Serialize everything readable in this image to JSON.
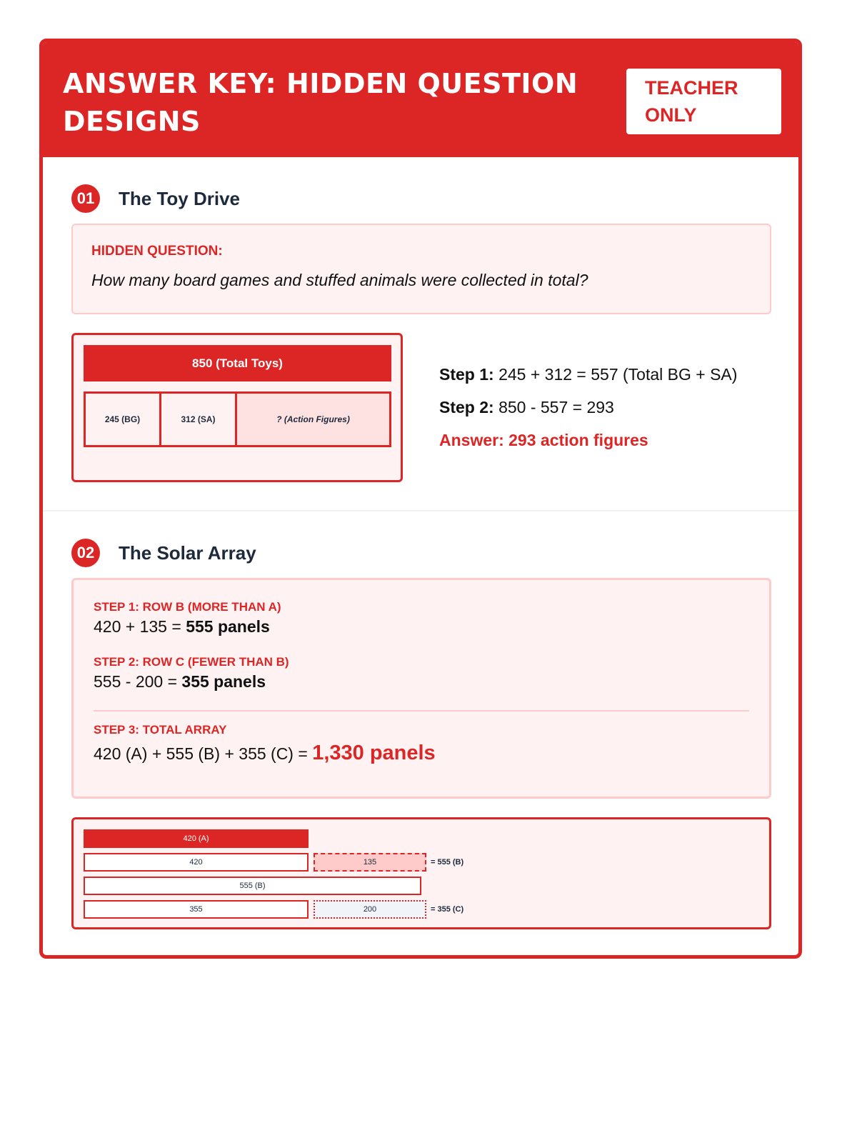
{
  "header": {
    "title": "ANSWER KEY: HIDDEN QUESTION DESIGNS",
    "badge": "TEACHER ONLY"
  },
  "problems": [
    {
      "number": "01",
      "title": "The Toy Drive",
      "hidden_label": "HIDDEN QUESTION:",
      "hidden_question": "How many board games and stuffed animals were collected in total?",
      "diagram": {
        "total": "850 (Total Toys)",
        "parts": [
          "245 (BG)",
          "312 (SA)",
          "? (Action Figures)"
        ]
      },
      "steps": [
        {
          "label": "Step 1:",
          "text": "245 + 312 = 557 (Total BG + SA)"
        },
        {
          "label": "Step 2:",
          "text": "850 - 557 = 293"
        }
      ],
      "answer": "Answer: 293 action figures"
    },
    {
      "number": "02",
      "title": "The Solar Array",
      "steps": [
        {
          "label": "STEP 1: ROW B (MORE THAN A)",
          "expr": "420 + 135 = ",
          "result": "555 panels"
        },
        {
          "label": "STEP 2: ROW C (FEWER THAN B)",
          "expr": "555 - 200 = ",
          "result": "355 panels"
        },
        {
          "label": "STEP 3: TOTAL ARRAY",
          "expr": "420 (A) + 555 (B) + 355 (C) = ",
          "result": "1,330 panels"
        }
      ],
      "diagram": {
        "row_a": "420 (A)",
        "row_b_base": "420",
        "row_b_extra": "135",
        "row_b_eq": "= 555 (B)",
        "row_b_total": "555 (B)",
        "row_c_base": "355",
        "row_c_removed": "200",
        "row_c_eq": "= 355 (C)"
      }
    }
  ],
  "colors": {
    "accent": "#dc2626",
    "light": "#fef2f2"
  }
}
